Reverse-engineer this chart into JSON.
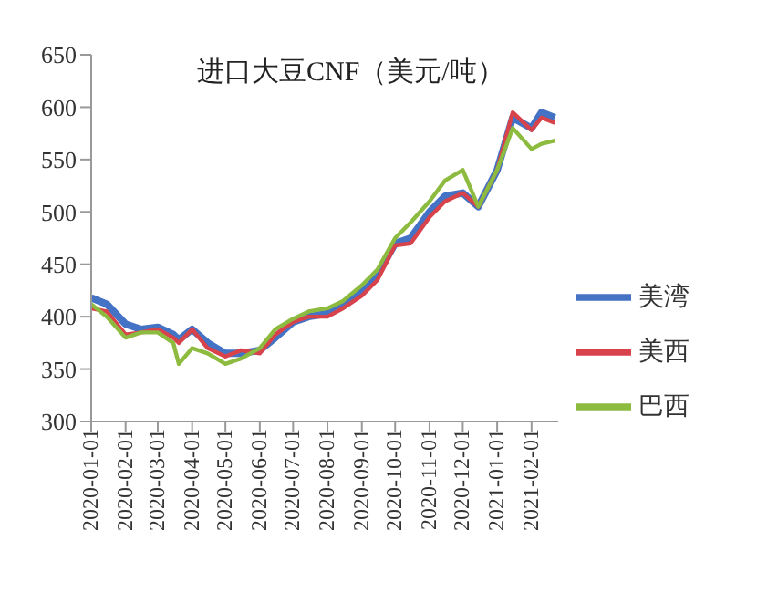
{
  "chart_data": {
    "type": "line",
    "title": "进口大豆CNF（美元/吨）",
    "x": [
      "2020-01-01",
      "2020-01-15",
      "2020-02-01",
      "2020-02-15",
      "2020-03-01",
      "2020-03-15",
      "2020-03-20",
      "2020-04-01",
      "2020-04-15",
      "2020-05-01",
      "2020-05-15",
      "2020-06-01",
      "2020-06-15",
      "2020-07-01",
      "2020-07-15",
      "2020-08-01",
      "2020-08-15",
      "2020-09-01",
      "2020-09-15",
      "2020-10-01",
      "2020-10-15",
      "2020-11-01",
      "2020-11-15",
      "2020-12-01",
      "2020-12-15",
      "2021-01-01",
      "2021-01-15",
      "2021-02-01",
      "2021-02-10",
      "2021-02-22"
    ],
    "series": [
      {
        "name": "美湾",
        "color": "#4472c4",
        "values": [
          418,
          412,
          393,
          388,
          390,
          383,
          378,
          388,
          375,
          365,
          365,
          368,
          380,
          395,
          400,
          403,
          410,
          425,
          440,
          470,
          475,
          500,
          515,
          518,
          505,
          540,
          590,
          580,
          595,
          590
        ]
      },
      {
        "name": "美西",
        "color": "#d8434b",
        "values": [
          408,
          405,
          383,
          385,
          388,
          380,
          375,
          388,
          370,
          362,
          368,
          365,
          383,
          395,
          400,
          400,
          408,
          420,
          435,
          468,
          470,
          495,
          510,
          518,
          505,
          540,
          595,
          578,
          590,
          585
        ]
      },
      {
        "name": "巴西",
        "color": "#8dbb3f",
        "values": [
          412,
          400,
          380,
          385,
          385,
          375,
          355,
          370,
          365,
          355,
          360,
          370,
          388,
          398,
          405,
          408,
          415,
          430,
          445,
          475,
          490,
          510,
          530,
          540,
          505,
          540,
          580,
          560,
          565,
          568
        ]
      }
    ],
    "xlim": [
      "2020-01-01",
      "2021-02-25"
    ],
    "xticks": [
      "2020-01-01",
      "2020-02-01",
      "2020-03-01",
      "2020-04-01",
      "2020-05-01",
      "2020-06-01",
      "2020-07-01",
      "2020-08-01",
      "2020-09-01",
      "2020-10-01",
      "2020-11-01",
      "2020-12-01",
      "2021-01-01",
      "2021-02-01"
    ],
    "ylim": [
      300,
      650
    ],
    "yticks": [
      300,
      350,
      400,
      450,
      500,
      550,
      600,
      650
    ],
    "legend": "right",
    "grid": false,
    "marker": "none",
    "line_style": "solid"
  }
}
